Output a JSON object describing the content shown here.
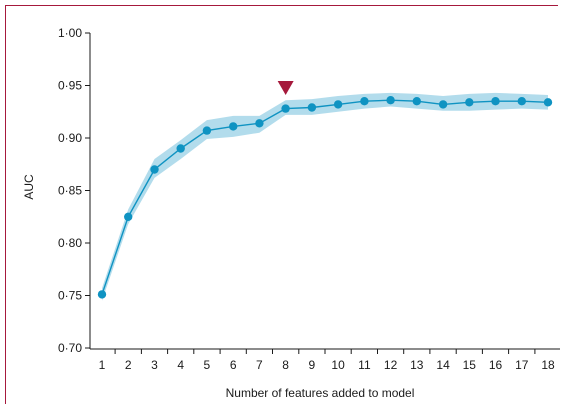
{
  "chart_data": {
    "type": "line",
    "xlabel": "Number of features added to model",
    "ylabel": "AUC",
    "xlim": [
      1,
      18
    ],
    "ylim": [
      0.7,
      1.0
    ],
    "x": [
      1,
      2,
      3,
      4,
      5,
      6,
      7,
      8,
      9,
      10,
      11,
      12,
      13,
      14,
      15,
      16,
      17,
      18
    ],
    "y_ticks": [
      "0·70",
      "0·75",
      "0·80",
      "0·85",
      "0·90",
      "0·95",
      "1·00"
    ],
    "y_tick_values": [
      0.7,
      0.75,
      0.8,
      0.85,
      0.9,
      0.95,
      1.0
    ],
    "series": [
      {
        "values": [
          0.751,
          0.825,
          0.87,
          0.89,
          0.907,
          0.911,
          0.914,
          0.928,
          0.929,
          0.932,
          0.935,
          0.936,
          0.935,
          0.932,
          0.934,
          0.935,
          0.935,
          0.934
        ],
        "lower": [
          0.745,
          0.818,
          0.862,
          0.88,
          0.899,
          0.901,
          0.905,
          0.922,
          0.922,
          0.925,
          0.928,
          0.93,
          0.928,
          0.926,
          0.926,
          0.927,
          0.928,
          0.927
        ],
        "upper": [
          0.757,
          0.832,
          0.88,
          0.898,
          0.917,
          0.921,
          0.921,
          0.936,
          0.937,
          0.94,
          0.942,
          0.943,
          0.942,
          0.94,
          0.942,
          0.943,
          0.942,
          0.941
        ]
      }
    ],
    "marker": {
      "x": 8,
      "symbol": "down-triangle"
    },
    "grid": false
  },
  "colors": {
    "line": "#0f93c2",
    "point": "#0f93c2",
    "band": "#aad8ea",
    "marker": "#a6193c",
    "axis": "#1a1a1a",
    "frame": "#a6193c"
  }
}
